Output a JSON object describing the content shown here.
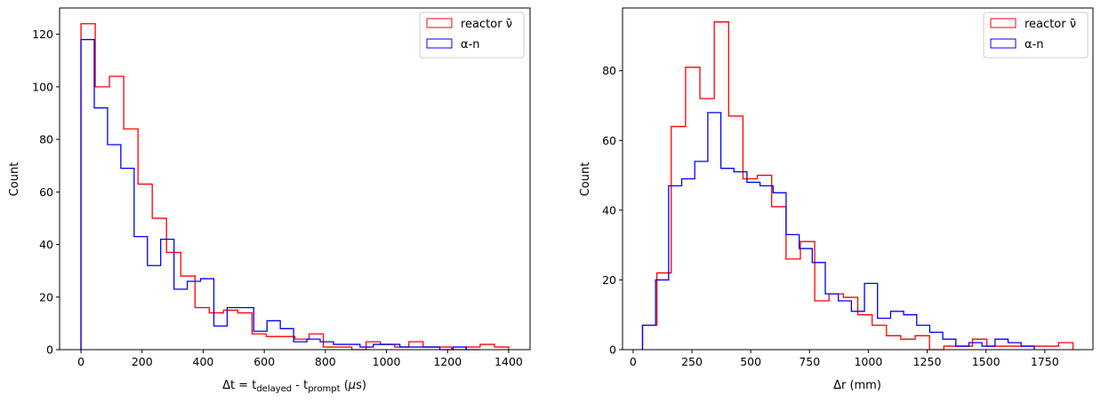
{
  "colors": {
    "reactor": "#ff0000",
    "alpha_n": "#0000ff",
    "axis": "#000000",
    "legend_border": "#cccccc"
  },
  "chart_data": [
    {
      "type": "histogram",
      "xlabel": "Δt = t_delayed - t_prompt (μs)",
      "xlabel_parts": {
        "lead": "Δt = t",
        "sub1": "delayed",
        "mid": " - t",
        "sub2": "prompt",
        "tail_open": " (",
        "mu": "μ",
        "tail_close": "s)"
      },
      "ylabel": "Count",
      "xlim": [
        -70,
        1470
      ],
      "ylim": [
        0,
        130
      ],
      "xticks": [
        0,
        200,
        400,
        600,
        800,
        1000,
        1200,
        1400
      ],
      "yticks": [
        0,
        20,
        40,
        60,
        80,
        100,
        120
      ],
      "legend": {
        "position": "upper right",
        "entries": [
          "reactor ν̄",
          "α-n"
        ]
      },
      "series": [
        {
          "name": "reactor ν̄",
          "color": "#ff0000",
          "bin_edges": [
            0,
            46.7,
            93.3,
            140,
            186.7,
            233.3,
            280,
            326.7,
            373.3,
            420,
            466.7,
            513.3,
            560,
            606.7,
            653.3,
            700,
            746.7,
            793.3,
            840,
            886.7,
            933.3,
            980,
            1026.7,
            1073.3,
            1120,
            1166.7,
            1213.3,
            1260,
            1306.7,
            1353.3,
            1400
          ],
          "counts": [
            124,
            100,
            104,
            84,
            63,
            50,
            37,
            28,
            16,
            14,
            15,
            14,
            6,
            5,
            5,
            4,
            6,
            1,
            1,
            0,
            3,
            2,
            1,
            3,
            1,
            1,
            0,
            1,
            2,
            1
          ]
        },
        {
          "name": "α-n",
          "color": "#0000ff",
          "bin_edges": [
            0,
            43.5,
            87,
            130.5,
            174,
            217.5,
            261,
            304.5,
            348,
            391.5,
            435,
            478.5,
            522,
            565.5,
            609,
            652.5,
            696,
            739.5,
            783,
            826.5,
            870,
            913.5,
            957,
            1000.5,
            1044,
            1087.5,
            1131,
            1174.5,
            1218,
            1261.5,
            1305
          ],
          "counts": [
            118,
            92,
            78,
            69,
            43,
            32,
            42,
            23,
            26,
            27,
            9,
            16,
            16,
            7,
            11,
            8,
            3,
            4,
            3,
            2,
            2,
            1,
            2,
            2,
            1,
            1,
            1,
            0,
            1,
            0
          ]
        }
      ]
    },
    {
      "type": "histogram",
      "xlabel": "Δr (mm)",
      "ylabel": "Count",
      "xlim": [
        -45,
        1955
      ],
      "ylim": [
        0,
        98
      ],
      "xticks": [
        0,
        250,
        500,
        750,
        1000,
        1250,
        1500,
        1750
      ],
      "yticks": [
        0,
        20,
        40,
        60,
        80
      ],
      "legend": {
        "position": "upper right",
        "entries": [
          "reactor ν̄",
          "α-n"
        ]
      },
      "series": [
        {
          "name": "reactor ν̄",
          "color": "#ff0000",
          "bin_edges": [
            40,
            101,
            162,
            223,
            284,
            345,
            406,
            467,
            528,
            589,
            650,
            711,
            772,
            833,
            894,
            955,
            1016,
            1077,
            1138,
            1199,
            1260,
            1321,
            1382,
            1443,
            1504,
            1565,
            1626,
            1687,
            1748,
            1809,
            1870
          ],
          "counts": [
            7,
            22,
            64,
            81,
            72,
            94,
            67,
            49,
            50,
            41,
            26,
            31,
            14,
            16,
            15,
            10,
            7,
            4,
            3,
            4,
            0,
            1,
            1,
            3,
            1,
            1,
            1,
            1,
            1,
            2
          ]
        },
        {
          "name": "α-n",
          "color": "#0000ff",
          "bin_edges": [
            40,
            95.5,
            151,
            206.5,
            262,
            317.5,
            373,
            428.5,
            484,
            539.5,
            595,
            650.5,
            706,
            761.5,
            817,
            872.5,
            928,
            983.5,
            1039,
            1094.5,
            1150,
            1205.5,
            1261,
            1316.5,
            1372,
            1427.5,
            1483,
            1538.5,
            1594,
            1649.5,
            1705
          ],
          "counts": [
            7,
            20,
            47,
            49,
            54,
            68,
            52,
            51,
            48,
            47,
            45,
            33,
            29,
            25,
            16,
            14,
            11,
            19,
            9,
            11,
            10,
            7,
            5,
            3,
            1,
            2,
            1,
            3,
            2,
            1
          ]
        }
      ]
    }
  ]
}
